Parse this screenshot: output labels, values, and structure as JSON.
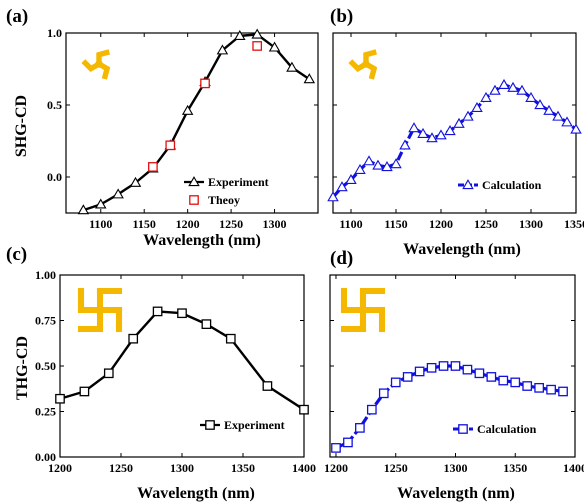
{
  "colors": {
    "black": "#000000",
    "blue": "#1010e0",
    "red": "#e01010",
    "gold": "#f5b800"
  },
  "chart_data": [
    {
      "id": "a",
      "panel_label": "(a)",
      "type": "line",
      "xlabel": "Wavelength (nm)",
      "ylabel": "SHG-CD",
      "xlim": [
        1060,
        1350
      ],
      "ylim": [
        -0.25,
        1.0
      ],
      "xticks": [
        1100,
        1150,
        1200,
        1250,
        1300
      ],
      "xtick_labels": [
        "1100",
        "1150",
        "1200",
        "1250",
        "1300"
      ],
      "yticks": [
        0.0,
        0.5,
        1.0
      ],
      "ytick_labels": [
        "0.0",
        "0.5",
        "1.0"
      ],
      "icon": "triskelion-icon",
      "legend_position": "bottom-right",
      "series": [
        {
          "name": "Experiment",
          "color": "#000000",
          "marker": "triangle",
          "line": true,
          "x": [
            1080,
            1100,
            1120,
            1140,
            1160,
            1180,
            1200,
            1220,
            1240,
            1260,
            1280,
            1300,
            1320,
            1340
          ],
          "y": [
            -0.23,
            -0.19,
            -0.12,
            -0.04,
            0.06,
            0.22,
            0.46,
            0.66,
            0.88,
            0.98,
            0.99,
            0.9,
            0.76,
            0.68
          ]
        },
        {
          "name": "Theoy",
          "color": "#e01010",
          "marker": "square",
          "line": false,
          "x": [
            1160,
            1180,
            1220,
            1280
          ],
          "y": [
            0.07,
            0.22,
            0.65,
            0.91
          ]
        }
      ]
    },
    {
      "id": "b",
      "panel_label": "(b)",
      "type": "line",
      "xlabel": "Wavelength (nm)",
      "ylabel": "",
      "xlim": [
        1080,
        1350
      ],
      "ylim": [
        -0.25,
        1.0
      ],
      "xticks": [
        1100,
        1150,
        1200,
        1250,
        1300,
        1350
      ],
      "xtick_labels": [
        "1100",
        "1150",
        "1200",
        "1250",
        "1300",
        "1350"
      ],
      "yticks": [
        0.0,
        0.5,
        1.0
      ],
      "ytick_labels": [],
      "icon": "triskelion-icon",
      "legend_position": "bottom-right",
      "series": [
        {
          "name": "Calculation",
          "color": "#1010e0",
          "marker": "triangle",
          "line": true,
          "dashed": true,
          "x": [
            1080,
            1090,
            1100,
            1110,
            1120,
            1130,
            1140,
            1150,
            1160,
            1170,
            1180,
            1190,
            1200,
            1210,
            1220,
            1230,
            1240,
            1250,
            1260,
            1270,
            1280,
            1290,
            1300,
            1310,
            1320,
            1330,
            1340,
            1350
          ],
          "y": [
            -0.14,
            -0.07,
            -0.02,
            0.05,
            0.11,
            0.08,
            0.07,
            0.09,
            0.22,
            0.34,
            0.3,
            0.27,
            0.29,
            0.32,
            0.37,
            0.42,
            0.48,
            0.55,
            0.6,
            0.64,
            0.62,
            0.6,
            0.55,
            0.5,
            0.46,
            0.42,
            0.38,
            0.33
          ]
        }
      ]
    },
    {
      "id": "c",
      "panel_label": "(c)",
      "type": "line",
      "xlabel": "Wavelength (nm)",
      "ylabel": "THG-CD",
      "xlim": [
        1200,
        1400
      ],
      "ylim": [
        0.0,
        1.0
      ],
      "xticks": [
        1200,
        1250,
        1300,
        1350,
        1400
      ],
      "xtick_labels": [
        "1200",
        "1250",
        "1300",
        "1350",
        "1400"
      ],
      "yticks": [
        0.0,
        0.25,
        0.5,
        0.75,
        1.0
      ],
      "ytick_labels": [
        "0.00",
        "0.25",
        "0.50",
        "0.75",
        "1.00"
      ],
      "icon": "swastika-icon",
      "legend_position": "bottom-right",
      "series": [
        {
          "name": "Experiment",
          "color": "#000000",
          "marker": "square",
          "line": true,
          "x": [
            1200,
            1220,
            1240,
            1260,
            1280,
            1300,
            1320,
            1340,
            1370,
            1400
          ],
          "y": [
            0.32,
            0.36,
            0.46,
            0.65,
            0.8,
            0.79,
            0.73,
            0.65,
            0.39,
            0.26
          ]
        }
      ]
    },
    {
      "id": "d",
      "panel_label": "(d)",
      "type": "line",
      "xlabel": "Wavelength (nm)",
      "ylabel": "",
      "xlim": [
        1195,
        1400
      ],
      "ylim": [
        0.0,
        1.0
      ],
      "xticks": [
        1200,
        1250,
        1300,
        1350,
        1400
      ],
      "xtick_labels": [
        "1200",
        "1250",
        "1300",
        "1350",
        "1400"
      ],
      "yticks": [
        0.0,
        0.25,
        0.5,
        0.75,
        1.0
      ],
      "ytick_labels": [],
      "icon": "swastika-icon",
      "legend_position": "bottom-right",
      "series": [
        {
          "name": "Calculation",
          "color": "#1010e0",
          "marker": "square",
          "line": true,
          "dashed": true,
          "x": [
            1200,
            1210,
            1220,
            1230,
            1240,
            1250,
            1260,
            1270,
            1280,
            1290,
            1300,
            1310,
            1320,
            1330,
            1340,
            1350,
            1360,
            1370,
            1380,
            1390
          ],
          "y": [
            0.05,
            0.08,
            0.16,
            0.26,
            0.35,
            0.41,
            0.44,
            0.47,
            0.49,
            0.5,
            0.5,
            0.48,
            0.46,
            0.44,
            0.42,
            0.41,
            0.39,
            0.38,
            0.37,
            0.36
          ]
        }
      ]
    }
  ]
}
